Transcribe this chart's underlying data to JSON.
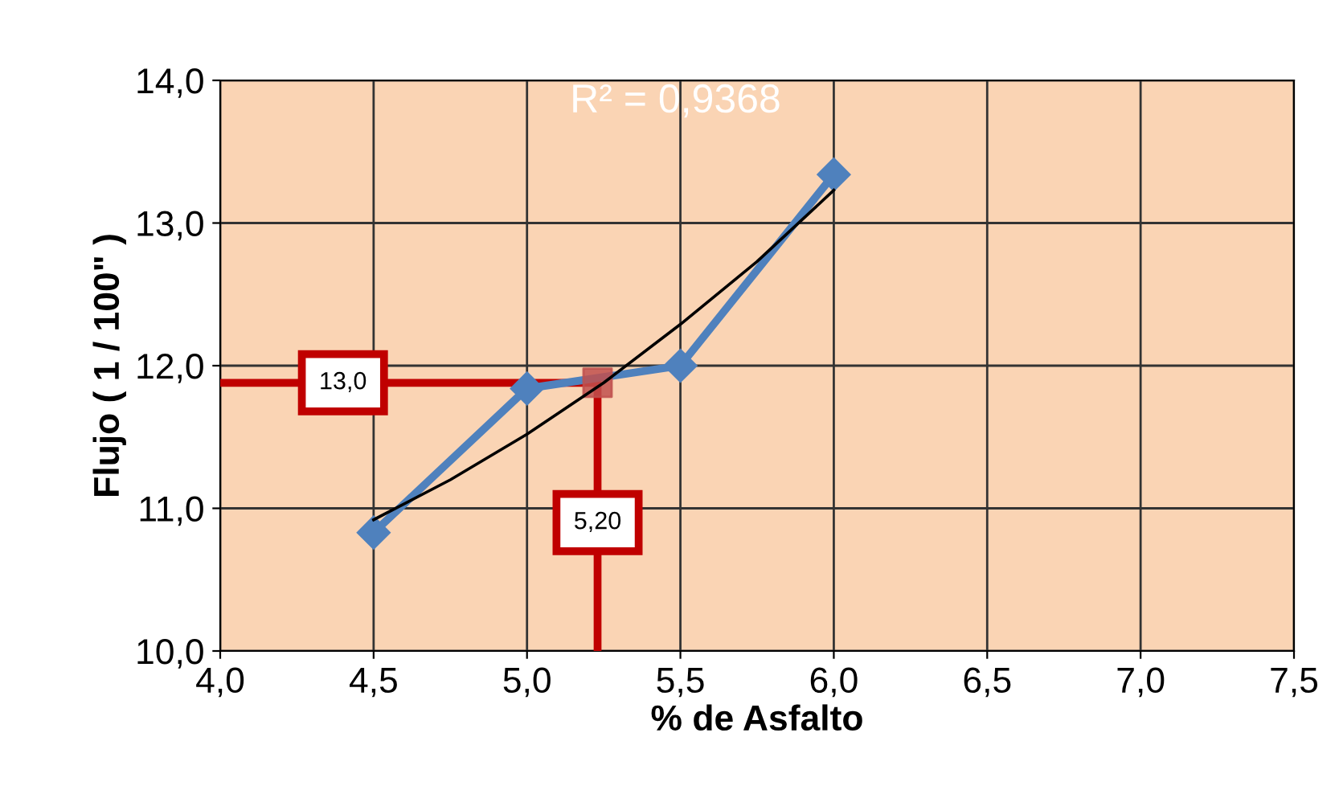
{
  "chart_data": {
    "type": "line",
    "xlabel": "% de Asfalto",
    "ylabel": "Flujo ( 1 / 100\" )",
    "xlim": [
      4.0,
      7.5
    ],
    "ylim": [
      10.0,
      14.0
    ],
    "xticks": [
      {
        "value": 4.0,
        "label": "4,0"
      },
      {
        "value": 4.5,
        "label": "4,5"
      },
      {
        "value": 5.0,
        "label": "5,0"
      },
      {
        "value": 5.5,
        "label": "5,5"
      },
      {
        "value": 6.0,
        "label": "6,0"
      },
      {
        "value": 6.5,
        "label": "6,5"
      },
      {
        "value": 7.0,
        "label": "7,0"
      },
      {
        "value": 7.5,
        "label": "7,5"
      }
    ],
    "yticks": [
      {
        "value": 10.0,
        "label": "10,0"
      },
      {
        "value": 11.0,
        "label": "11,0"
      },
      {
        "value": 12.0,
        "label": "12,0"
      },
      {
        "value": 13.0,
        "label": "13,0"
      },
      {
        "value": 14.0,
        "label": "14,0"
      }
    ],
    "grid": true,
    "legend": false,
    "series": [
      {
        "color": "#c00000",
        "x": [
          4.0,
          5.23,
          5.23
        ],
        "values": [
          11.88,
          11.88,
          10.0
        ],
        "marker": "none"
      },
      {
        "color": "#4f81bd",
        "x": [
          4.5,
          5.0,
          5.5,
          6.0
        ],
        "values": [
          10.83,
          11.84,
          12.0,
          13.34
        ],
        "marker": "diamond"
      },
      {
        "color": "#000000",
        "x": [
          4.5,
          4.75,
          5.0,
          5.25,
          5.5,
          5.75,
          6.0
        ],
        "values": [
          10.92,
          11.2,
          11.52,
          11.88,
          12.29,
          12.73,
          13.23
        ],
        "marker": "none"
      },
      {
        "type": "scatter",
        "color": "#c0504d",
        "x": [
          5.23
        ],
        "values": [
          11.88
        ],
        "marker": "square"
      }
    ],
    "annotations": [
      {
        "text": "13,0",
        "x": 4.4,
        "y": 11.88
      },
      {
        "text": "5,20",
        "x": 5.23,
        "y": 10.9
      },
      "R² = 0,9368"
    ]
  }
}
